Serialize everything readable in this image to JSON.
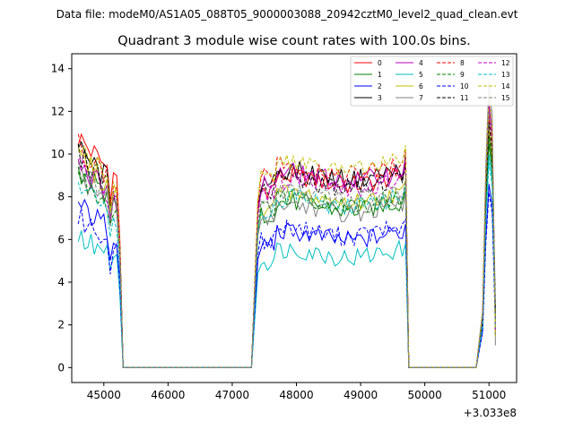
{
  "header": "Data file: modeM0/AS1A05_088T05_9000003088_20942cztM0_level2_quad_clean.evt",
  "chart_data": {
    "type": "line",
    "title": "Quadrant 3 module wise count rates with 100.0s bins.",
    "xlabel": "",
    "ylabel": "",
    "x_offset_label": "+3.033e8",
    "xlim": [
      44500,
      51430
    ],
    "ylim": [
      -0.7,
      14.7
    ],
    "xticks": [
      45000,
      46000,
      47000,
      48000,
      49000,
      50000,
      51000
    ],
    "yticks": [
      0,
      2,
      4,
      6,
      8,
      10,
      12,
      14
    ],
    "segments": [
      {
        "start": 44600,
        "step": 50,
        "plateau_end": 45200,
        "edge_after": 45300
      },
      {
        "start": 47400,
        "step": 50,
        "plateau_end": 49650,
        "edge_before": 47300,
        "edge_after": 49750
      },
      {
        "start": 50950,
        "step": 50,
        "plateau_end": 51050,
        "edge_before": 50850,
        "edge_after": 51100
      }
    ],
    "series": [
      {
        "name": "0",
        "color": "#ff0000",
        "dash": false,
        "levels": [
          10.8,
          8.6,
          12.0
        ]
      },
      {
        "name": "1",
        "color": "#008000",
        "dash": false,
        "levels": [
          9.3,
          7.4,
          10.5
        ]
      },
      {
        "name": "2",
        "color": "#0000ff",
        "dash": false,
        "levels": [
          7.6,
          6.0,
          8.6
        ]
      },
      {
        "name": "3",
        "color": "#000000",
        "dash": false,
        "levels": [
          10.2,
          8.9,
          11.0
        ]
      },
      {
        "name": "4",
        "color": "#bf00bf",
        "dash": false,
        "levels": [
          9.5,
          8.8,
          12.3
        ]
      },
      {
        "name": "5",
        "color": "#00bfbf",
        "dash": false,
        "levels": [
          6.1,
          5.2,
          10.0
        ]
      },
      {
        "name": "6",
        "color": "#bfbf00",
        "dash": false,
        "levels": [
          9.9,
          7.8,
          11.2
        ]
      },
      {
        "name": "7",
        "color": "#808080",
        "dash": false,
        "levels": [
          9.0,
          7.3,
          13.4
        ]
      },
      {
        "name": "8",
        "color": "#ff0000",
        "dash": true,
        "levels": [
          10.4,
          9.1,
          11.6
        ]
      },
      {
        "name": "9",
        "color": "#008000",
        "dash": true,
        "levels": [
          9.0,
          7.6,
          10.9
        ]
      },
      {
        "name": "10",
        "color": "#0000ff",
        "dash": true,
        "levels": [
          7.0,
          6.2,
          8.2
        ]
      },
      {
        "name": "11",
        "color": "#000000",
        "dash": true,
        "levels": [
          10.0,
          8.5,
          11.5
        ]
      },
      {
        "name": "12",
        "color": "#bf00bf",
        "dash": true,
        "levels": [
          9.6,
          8.4,
          12.5
        ]
      },
      {
        "name": "13",
        "color": "#00bfbf",
        "dash": true,
        "levels": [
          8.5,
          7.6,
          9.6
        ]
      },
      {
        "name": "14",
        "color": "#bfbf00",
        "dash": true,
        "levels": [
          10.3,
          9.3,
          12.8
        ]
      },
      {
        "name": "15",
        "color": "#808080",
        "dash": true,
        "levels": [
          9.2,
          7.9,
          12.0
        ]
      }
    ],
    "legend_position": "top-right"
  }
}
